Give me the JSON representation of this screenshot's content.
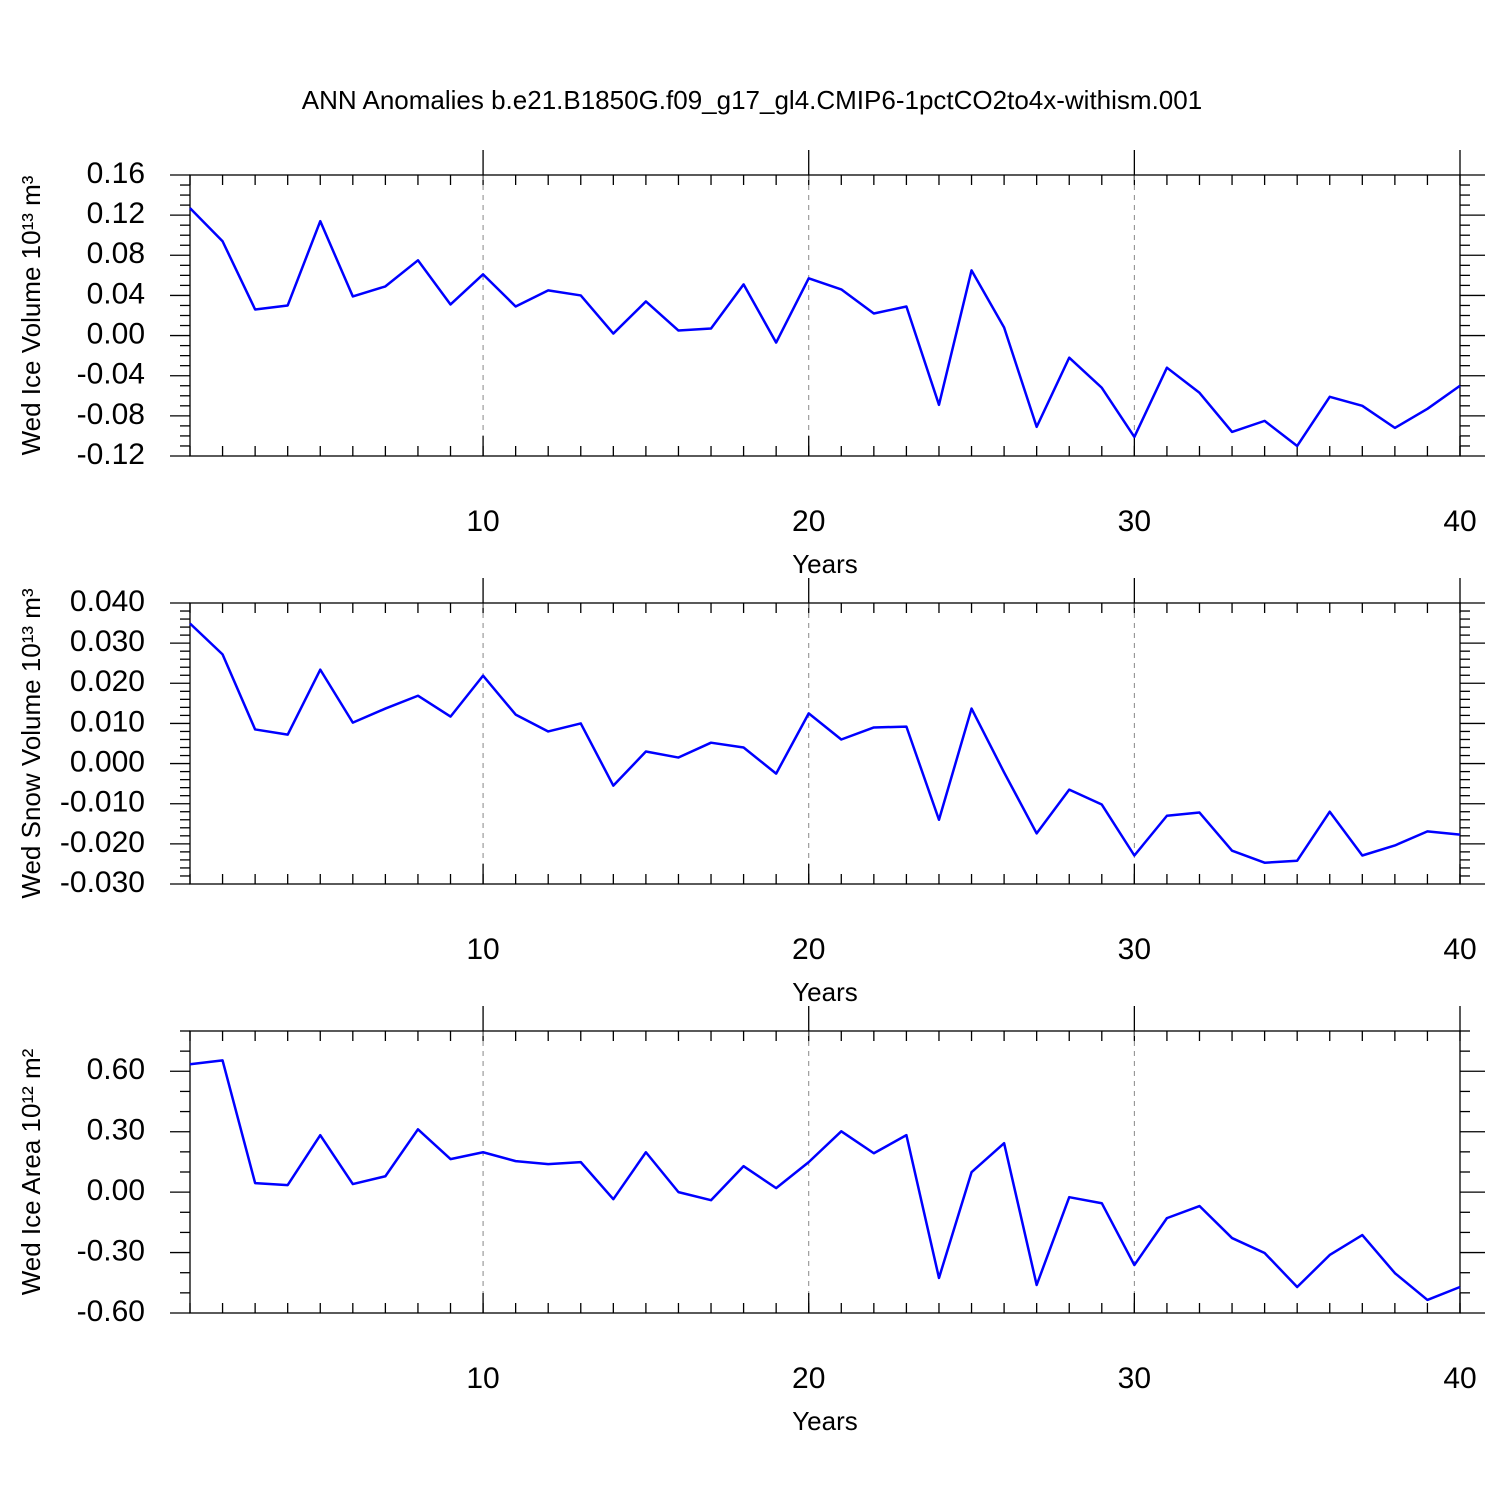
{
  "chart_data": [
    {
      "type": "line",
      "title": "ANN Anomalies b.e21.B1850G.f09_g17_gl4.CMIP6-1pctCO2to4x-withism.001",
      "xlabel": "Years",
      "ylabel": "Wed Ice Volume 10¹³ m³",
      "x": [
        1,
        2,
        3,
        4,
        5,
        6,
        7,
        8,
        9,
        10,
        11,
        12,
        13,
        14,
        15,
        16,
        17,
        18,
        19,
        20,
        21,
        22,
        23,
        24,
        25,
        26,
        27,
        28,
        29,
        30,
        31,
        32,
        33,
        34,
        35,
        36,
        37,
        38,
        39,
        40
      ],
      "series": [
        {
          "color": "#0000ff",
          "values": [
            0.127,
            0.094,
            0.026,
            0.03,
            0.114,
            0.039,
            0.049,
            0.075,
            0.031,
            0.061,
            0.029,
            0.045,
            0.04,
            0.002,
            0.034,
            0.005,
            0.007,
            0.051,
            -0.007,
            0.057,
            0.046,
            0.022,
            0.029,
            -0.069,
            0.065,
            0.008,
            -0.091,
            -0.022,
            -0.052,
            -0.101,
            -0.032,
            -0.057,
            -0.096,
            -0.085,
            -0.11,
            -0.061,
            -0.07,
            -0.092,
            -0.073,
            -0.05
          ]
        }
      ],
      "xlim": [
        1,
        40
      ],
      "xticks": [
        10,
        20,
        30,
        40
      ],
      "ylim": [
        -0.12,
        0.16
      ],
      "yticks": [
        0.16,
        0.12,
        0.08,
        0.04,
        {
          "value": 0,
          "label": "0.00"
        },
        -0.04,
        -0.08,
        -0.12
      ],
      "grid": true
    },
    {
      "type": "line",
      "xlabel": "Years",
      "ylabel": "Wed Snow Volume 10¹³ m³",
      "x": [
        1,
        2,
        3,
        4,
        5,
        6,
        7,
        8,
        9,
        10,
        11,
        12,
        13,
        14,
        15,
        16,
        17,
        18,
        19,
        20,
        21,
        22,
        23,
        24,
        25,
        26,
        27,
        28,
        29,
        30,
        31,
        32,
        33,
        34,
        35,
        36,
        37,
        38,
        39,
        40
      ],
      "series": [
        {
          "color": "#0000ff",
          "values": [
            0.0349,
            0.0272,
            0.0085,
            0.0072,
            0.0234,
            0.0102,
            0.0137,
            0.0169,
            0.0117,
            0.0219,
            0.0122,
            0.008,
            0.01,
            -0.0055,
            0.003,
            0.0015,
            0.0052,
            0.004,
            -0.0025,
            0.0125,
            0.006,
            0.009,
            0.0092,
            -0.014,
            0.0137,
            -0.0022,
            -0.0174,
            -0.0065,
            -0.0102,
            -0.0229,
            -0.013,
            -0.0122,
            -0.0217,
            -0.0247,
            -0.0242,
            -0.012,
            -0.0229,
            -0.0204,
            -0.0169,
            -0.0177
          ]
        }
      ],
      "xlim": [
        1,
        40
      ],
      "xticks": [
        10,
        20,
        30,
        40
      ],
      "ylim": [
        -0.03,
        0.04
      ],
      "yticks": [
        {
          "value": 0.04,
          "label": "0.040"
        },
        {
          "value": 0.03,
          "label": "0.030"
        },
        {
          "value": 0.02,
          "label": "0.020"
        },
        {
          "value": 0.01,
          "label": "0.010"
        },
        {
          "value": 0,
          "label": "0.000"
        },
        {
          "value": -0.01,
          "label": "-0.010"
        },
        {
          "value": -0.02,
          "label": "-0.020"
        },
        {
          "value": -0.03,
          "label": "-0.030"
        }
      ],
      "grid": true
    },
    {
      "type": "line",
      "xlabel": "Years",
      "ylabel": "Wed Ice Area 10¹² m²",
      "x": [
        1,
        2,
        3,
        4,
        5,
        6,
        7,
        8,
        9,
        10,
        11,
        12,
        13,
        14,
        15,
        16,
        17,
        18,
        19,
        20,
        21,
        22,
        23,
        24,
        25,
        26,
        27,
        28,
        29,
        30,
        31,
        32,
        33,
        34,
        35,
        36,
        37,
        38,
        39,
        40
      ],
      "series": [
        {
          "color": "#0000ff",
          "values": [
            0.635,
            0.654,
            0.045,
            0.035,
            0.283,
            0.04,
            0.079,
            0.312,
            0.164,
            0.198,
            0.154,
            0.139,
            0.149,
            -0.035,
            0.198,
            0.0,
            -0.04,
            0.129,
            0.02,
            0.149,
            0.302,
            0.193,
            0.283,
            -0.426,
            0.099,
            0.243,
            -0.461,
            -0.025,
            -0.055,
            -0.362,
            -0.129,
            -0.069,
            -0.228,
            -0.302,
            -0.471,
            -0.312,
            -0.213,
            -0.402,
            -0.535,
            -0.471
          ]
        }
      ],
      "xlim": [
        1,
        40
      ],
      "xticks": [
        10,
        20,
        30,
        40
      ],
      "ylim": [
        -0.6,
        0.8
      ],
      "yticks": [
        {
          "value": 0.6,
          "label": "0.60"
        },
        {
          "value": 0.3,
          "label": "0.30"
        },
        {
          "value": 0,
          "label": "0.00"
        },
        {
          "value": -0.3,
          "label": "-0.30"
        },
        {
          "value": -0.6,
          "label": "-0.60"
        }
      ],
      "grid": true
    }
  ]
}
